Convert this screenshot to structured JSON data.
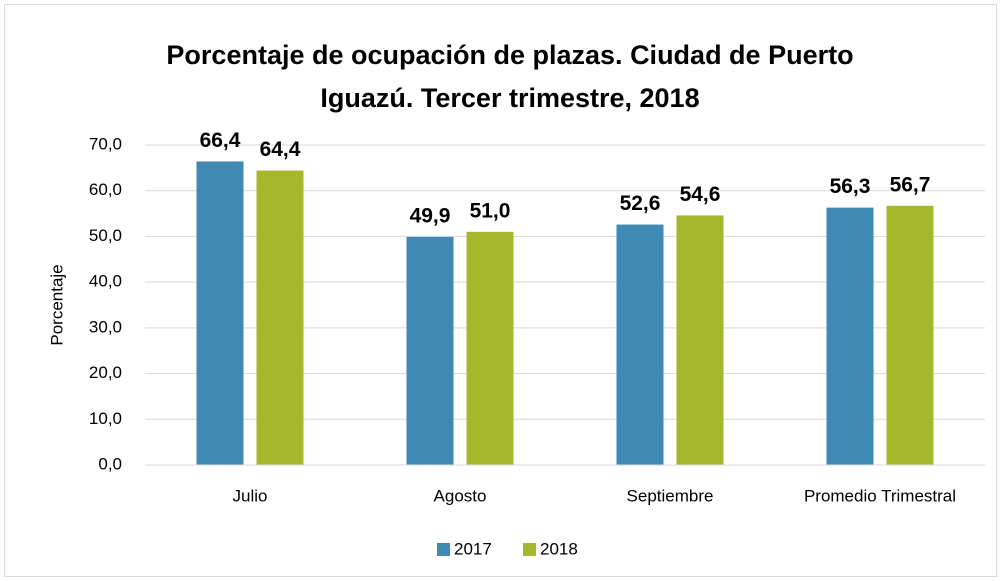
{
  "chart_data": {
    "type": "bar",
    "title": "Porcentaje de ocupación de plazas. Ciudad de Puerto Iguazú. Tercer trimestre, 2018",
    "y_label": "Porcentaje",
    "categories": [
      "Julio",
      "Agosto",
      "Septiembre",
      "Promedio Trimestral"
    ],
    "series": [
      {
        "name": "2017",
        "color": "#3f8ab5",
        "values": [
          66.4,
          49.9,
          52.6,
          56.3
        ],
        "value_labels": [
          "66,4",
          "49,9",
          "52,6",
          "56,3"
        ]
      },
      {
        "name": "2018",
        "color": "#a5b82c",
        "values": [
          64.4,
          51.0,
          54.6,
          56.7
        ],
        "value_labels": [
          "64,4",
          "51,0",
          "54,6",
          "56,7"
        ]
      }
    ],
    "ylim": [
      0,
      70
    ],
    "yticks": [
      {
        "value": 0,
        "label": "0,0"
      },
      {
        "value": 10,
        "label": "10,0"
      },
      {
        "value": 20,
        "label": "20,0"
      },
      {
        "value": 30,
        "label": "30,0"
      },
      {
        "value": 40,
        "label": "40,0"
      },
      {
        "value": 50,
        "label": "50,0"
      },
      {
        "value": 60,
        "label": "60,0"
      },
      {
        "value": 70,
        "label": "70,0"
      }
    ],
    "grid": true,
    "legend": "bottom"
  }
}
